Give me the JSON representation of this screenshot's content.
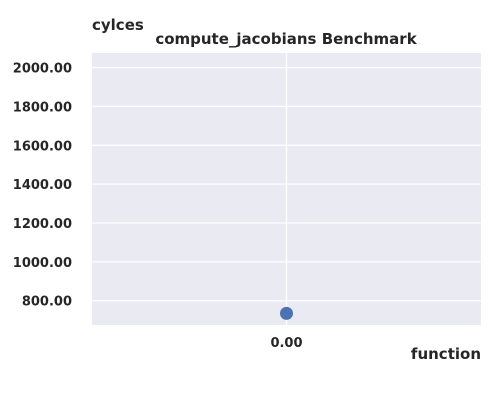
{
  "chart_data": {
    "type": "scatter",
    "title": "compute_jacobians Benchmark",
    "xlabel": "function",
    "ylabel": "cylces",
    "x_tick_labels": [
      "0.00"
    ],
    "y_tick_labels": [
      "800.00",
      "1000.00",
      "1200.00",
      "1400.00",
      "1600.00",
      "1800.00",
      "2000.00"
    ],
    "y_ticks": [
      800,
      1000,
      1200,
      1400,
      1600,
      1800,
      2000
    ],
    "ylim": [
      675,
      2075
    ],
    "xlim": [
      -1,
      1
    ],
    "grid": true,
    "series": [
      {
        "points": [
          {
            "x": 0,
            "y": 735
          }
        ]
      }
    ]
  },
  "colors": {
    "plot_background": "#eaeaf2",
    "grid": "#ffffff",
    "marker": "#4c72b0"
  }
}
